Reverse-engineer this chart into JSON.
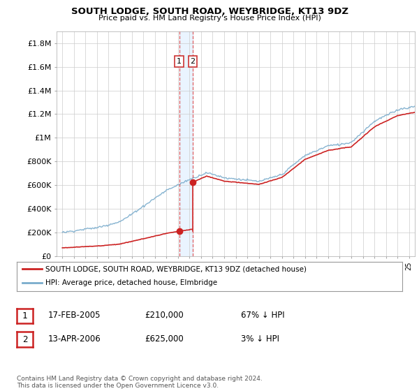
{
  "title": "SOUTH LODGE, SOUTH ROAD, WEYBRIDGE, KT13 9DZ",
  "subtitle": "Price paid vs. HM Land Registry's House Price Index (HPI)",
  "ylabel_ticks": [
    "£0",
    "£200K",
    "£400K",
    "£600K",
    "£800K",
    "£1M",
    "£1.2M",
    "£1.4M",
    "£1.6M",
    "£1.8M"
  ],
  "ytick_values": [
    0,
    200000,
    400000,
    600000,
    800000,
    1000000,
    1200000,
    1400000,
    1600000,
    1800000
  ],
  "ylim": [
    0,
    1900000
  ],
  "xlim_start": 1994.5,
  "xlim_end": 2025.5,
  "sale1_year": 2005.12,
  "sale1_price": 210000,
  "sale2_year": 2006.28,
  "sale2_price": 625000,
  "hpi_color": "#7aaccc",
  "price_color": "#cc2222",
  "marker_color": "#cc2222",
  "dashed_line_color": "#dd4444",
  "shade_color": "#ddeeff",
  "legend_line1": "SOUTH LODGE, SOUTH ROAD, WEYBRIDGE, KT13 9DZ (detached house)",
  "legend_line2": "HPI: Average price, detached house, Elmbridge",
  "table_row1": [
    "1",
    "17-FEB-2005",
    "£210,000",
    "67% ↓ HPI"
  ],
  "table_row2": [
    "2",
    "13-APR-2006",
    "£625,000",
    "3% ↓ HPI"
  ],
  "footnote": "Contains HM Land Registry data © Crown copyright and database right 2024.\nThis data is licensed under the Open Government Licence v3.0.",
  "bg_color": "#ffffff",
  "grid_color": "#cccccc"
}
